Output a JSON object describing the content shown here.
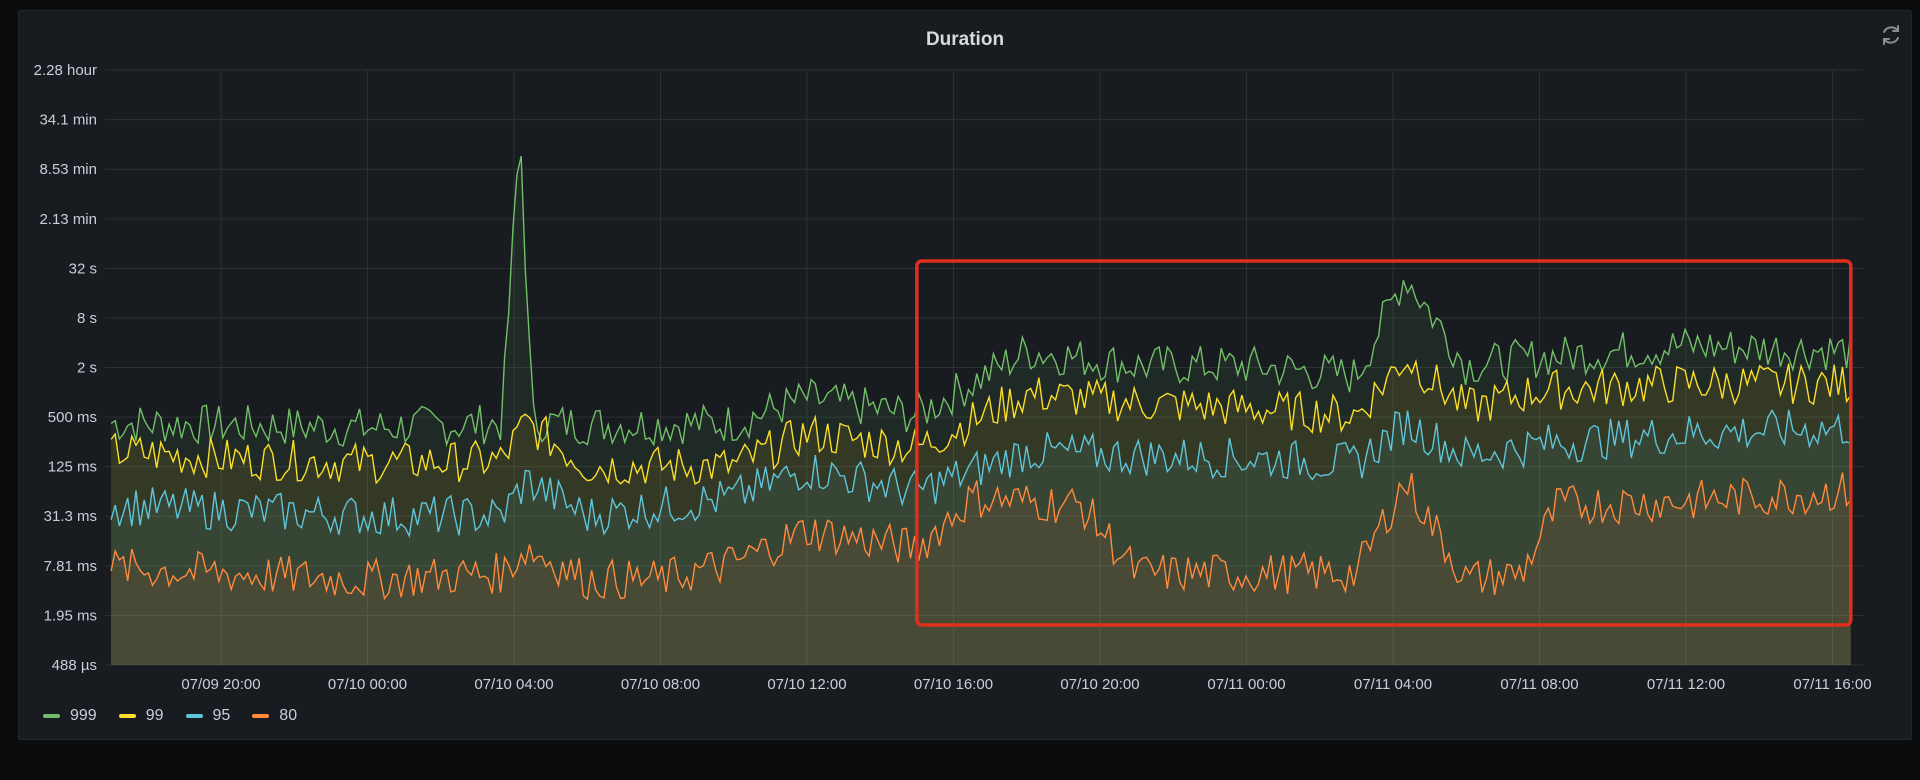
{
  "panel": {
    "title": "Duration"
  },
  "icons": {
    "refresh": "refresh-icon"
  },
  "highlight_box": {
    "color": "#e02f1f",
    "x_start": "07/10 15:00",
    "x_end": "07/11 16:30"
  },
  "chart_data": {
    "type": "area",
    "title": "Duration",
    "y_scale": "log",
    "y_tick_labels": [
      "2.28 hour",
      "34.1 min",
      "8.53 min",
      "2.13 min",
      "32 s",
      "8 s",
      "2 s",
      "500 ms",
      "125 ms",
      "31.3 ms",
      "7.81 ms",
      "1.95 ms",
      "488 µs"
    ],
    "y_ticks_ms": [
      8208000,
      2046000,
      511800,
      127800,
      32000,
      8000,
      2000,
      500,
      125,
      31.3,
      7.81,
      1.95,
      0.488
    ],
    "x_tick_labels": [
      "07/09 20:00",
      "07/10 00:00",
      "07/10 04:00",
      "07/10 08:00",
      "07/10 12:00",
      "07/10 16:00",
      "07/10 20:00",
      "07/11 00:00",
      "07/11 04:00",
      "07/11 08:00",
      "07/11 12:00",
      "07/11 16:00"
    ],
    "x_range": [
      "07/09 16:50",
      "07/11 16:50"
    ],
    "grid": true,
    "legend_position": "bottom-left",
    "series": [
      {
        "name": "999",
        "color": "#73bf69",
        "x": [
          "07/09 17:00",
          "07/09 20:00",
          "07/10 00:00",
          "07/10 03:40",
          "07/10 04:10",
          "07/10 04:30",
          "07/10 06:00",
          "07/10 10:00",
          "07/10 12:00",
          "07/10 15:00",
          "07/10 18:00",
          "07/10 21:00",
          "07/11 00:00",
          "07/11 03:00",
          "07/11 04:20",
          "07/11 06:00",
          "07/11 08:00",
          "07/11 12:00",
          "07/11 16:30"
        ],
        "values_ms": [
          400,
          380,
          350,
          400,
          1500000,
          420,
          380,
          400,
          800,
          500,
          3000,
          2000,
          2000,
          1500,
          25000,
          2000,
          2500,
          3500,
          3000
        ]
      },
      {
        "name": "99",
        "color": "#fade2a",
        "x": [
          "07/09 17:00",
          "07/09 20:00",
          "07/10 00:00",
          "07/10 03:40",
          "07/10 04:20",
          "07/10 06:00",
          "07/10 10:00",
          "07/10 12:00",
          "07/10 15:00",
          "07/10 18:00",
          "07/10 21:00",
          "07/11 00:00",
          "07/11 03:00",
          "07/11 04:20",
          "07/11 06:00",
          "07/11 08:00",
          "07/11 12:00",
          "07/11 16:30"
        ],
        "values_ms": [
          180,
          150,
          130,
          140,
          400,
          120,
          120,
          300,
          200,
          900,
          700,
          600,
          500,
          2500,
          600,
          1000,
          1200,
          1200
        ]
      },
      {
        "name": "95",
        "color": "#5fc5d9",
        "x": [
          "07/09 17:00",
          "07/09 20:00",
          "07/10 00:00",
          "07/10 03:40",
          "07/10 04:20",
          "07/10 06:00",
          "07/10 10:00",
          "07/10 12:00",
          "07/10 15:00",
          "07/10 18:00",
          "07/10 21:00",
          "07/11 00:00",
          "07/11 03:00",
          "07/11 04:20",
          "07/11 06:00",
          "07/11 08:00",
          "07/11 12:00",
          "07/11 16:30"
        ],
        "values_ms": [
          40,
          35,
          30,
          30,
          80,
          30,
          50,
          110,
          60,
          180,
          160,
          150,
          130,
          400,
          160,
          220,
          300,
          350
        ]
      },
      {
        "name": "80",
        "color": "#ff8a3d",
        "x": [
          "07/09 17:00",
          "07/09 20:00",
          "07/10 00:00",
          "07/10 03:40",
          "07/10 04:20",
          "07/10 06:00",
          "07/10 08:00",
          "07/10 10:00",
          "07/10 12:00",
          "07/10 15:00",
          "07/10 16:30",
          "07/10 19:30",
          "07/10 21:00",
          "07/11 00:00",
          "07/11 03:00",
          "07/11 04:20",
          "07/11 06:00",
          "07/11 07:30",
          "07/11 08:30",
          "07/11 12:00",
          "07/11 16:30"
        ],
        "values_ms": [
          7,
          6,
          5,
          6,
          12,
          5,
          5,
          8,
          20,
          12,
          50,
          40,
          6,
          6,
          6,
          80,
          5,
          6,
          40,
          45,
          60
        ]
      }
    ]
  },
  "legend": [
    {
      "label": "999",
      "color": "#73bf69"
    },
    {
      "label": "99",
      "color": "#fade2a"
    },
    {
      "label": "95",
      "color": "#5fc5d9"
    },
    {
      "label": "80",
      "color": "#ff8a3d"
    }
  ]
}
